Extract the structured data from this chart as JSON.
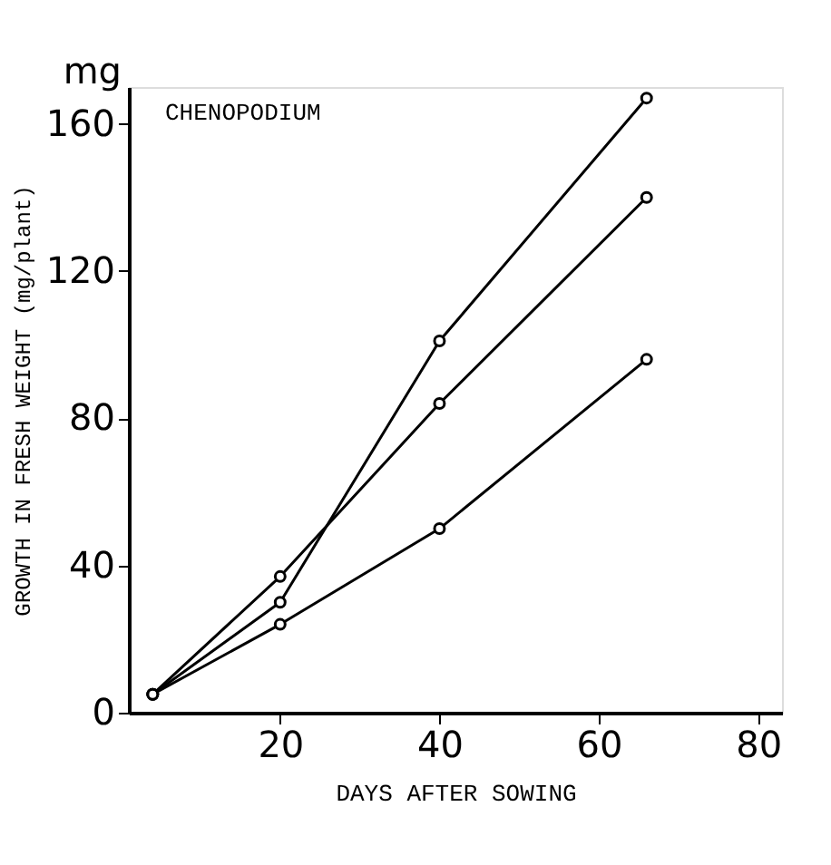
{
  "chart_data": {
    "type": "line",
    "title": "CHENOPODIUM",
    "xlabel": "DAYS AFTER SOWING",
    "ylabel": "GROWTH IN FRESH WEIGHT (mg/plant)",
    "annotations": [
      "mg"
    ],
    "xlim": [
      1,
      83
    ],
    "xticks": [
      20,
      40,
      60,
      80
    ],
    "ylim": [
      0,
      170
    ],
    "yticks": [
      0,
      40,
      80,
      120,
      160
    ],
    "grid": false,
    "marker": "circle",
    "line_style": "solid",
    "series": [
      {
        "color": "#000000",
        "x": [
          4,
          20,
          40,
          66
        ],
        "values": [
          5,
          30,
          101,
          167
        ]
      },
      {
        "color": "#000000",
        "x": [
          4,
          20,
          40,
          66
        ],
        "values": [
          5,
          37,
          84,
          140
        ]
      },
      {
        "color": "#000000",
        "x": [
          4,
          20,
          40,
          66
        ],
        "values": [
          5,
          24,
          50,
          96
        ]
      }
    ]
  }
}
